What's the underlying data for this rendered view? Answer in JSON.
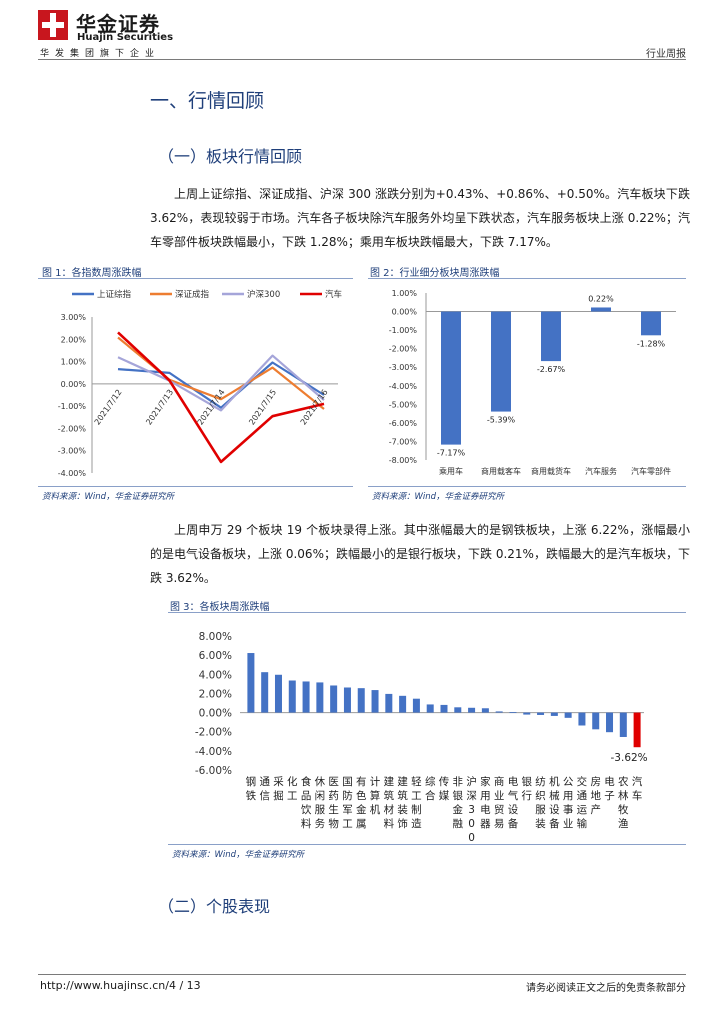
{
  "header": {
    "brand_cn": "华金证券",
    "brand_en": "Huajin Securities",
    "slogan": "华发集团旗下企业",
    "report_type": "行业周报"
  },
  "section1": {
    "title": "一、行情回顾",
    "sub1": "（一）板块行情回顾",
    "para1": "上周上证综指、深证成指、沪深 300 涨跌分别为+0.43%、+0.86%、+0.50%。汽车板块下跌 3.62%，表现较弱于市场。汽车各子板块除汽车服务外均呈下跌状态，汽车服务板块上涨 0.22%；汽车零部件板块跌幅最小，下跌 1.28%；乘用车板块跌幅最大，下跌 7.17%。",
    "para2": "上周申万 29 个板块 19 个板块录得上涨。其中涨幅最大的是钢铁板块，上涨 6.22%，涨幅最小的是电气设备板块，上涨 0.06%；跌幅最小的是银行板块，下跌 0.21%，跌幅最大的是汽车板块，下跌 3.62%。",
    "sub2": "（二）个股表现"
  },
  "fig1": {
    "caption": "图 1：各指数周涨跌幅",
    "source": "资料来源：Wind，华金证券研究所"
  },
  "fig2": {
    "caption": "图 2：行业细分板块周涨跌幅",
    "source": "资料来源：Wind，华金证券研究所"
  },
  "fig3": {
    "caption": "图 3：各板块周涨跌幅",
    "source": "资料来源：Wind，华金证券研究所"
  },
  "footer": {
    "url_page": "http://www.huajinsc.cn/4 / 13",
    "disclaimer": "请务必阅读正文之后的免责条款部分"
  },
  "chart_data": [
    {
      "type": "line",
      "categories": [
        "2021/7/12",
        "2021/7/13",
        "2021/7/14",
        "2021/7/15",
        "2021/7/16"
      ],
      "series": [
        {
          "name": "上证综指",
          "color": "#4472c4",
          "values": [
            0.66,
            0.49,
            -1.07,
            0.96,
            -0.5
          ]
        },
        {
          "name": "深证成指",
          "color": "#ed7d31",
          "values": [
            2.08,
            0.18,
            -0.69,
            0.73,
            -1.13
          ]
        },
        {
          "name": "沪深300",
          "color": "#a5a5d9",
          "values": [
            1.19,
            0.14,
            -1.19,
            1.27,
            -0.73
          ]
        },
        {
          "name": "汽车",
          "color": "#e00000",
          "values": [
            2.31,
            0.15,
            -3.5,
            -1.45,
            -0.9
          ]
        }
      ],
      "ylim": [
        -4,
        3
      ],
      "yticks": [
        "3.00%",
        "2.00%",
        "1.00%",
        "0.00%",
        "-1.00%",
        "-2.00%",
        "-3.00%",
        "-4.00%"
      ],
      "legend": "top"
    },
    {
      "type": "bar",
      "categories": [
        "乘用车",
        "商用载客车",
        "商用载货车",
        "汽车服务",
        "汽车零部件"
      ],
      "values": [
        -7.17,
        -5.39,
        -2.67,
        0.22,
        -1.28
      ],
      "labels": [
        "-7.17%",
        "-5.39%",
        "-2.67%",
        "0.22%",
        "-1.28%"
      ],
      "ylim": [
        -8,
        1
      ],
      "yticks": [
        "1.00%",
        "0.00%",
        "-1.00%",
        "-2.00%",
        "-3.00%",
        "-4.00%",
        "-5.00%",
        "-6.00%",
        "-7.00%",
        "-8.00%"
      ],
      "color": "#4472c4"
    },
    {
      "type": "bar",
      "categories": [
        "钢铁",
        "通信",
        "采掘",
        "化工",
        "食品饮料",
        "休闲服务",
        "医药生物",
        "国防军工",
        "有色金属",
        "计算机",
        "建筑材料",
        "建筑装饰",
        "轻工制造",
        "综合",
        "传媒",
        "非银金融",
        "沪深300",
        "家用电器",
        "商业贸易",
        "电气设备",
        "银行",
        "纺织服装",
        "机械设备",
        "公用事业",
        "交通运输",
        "房地产",
        "电子",
        "农林牧渔",
        "汽车"
      ],
      "values": [
        6.22,
        4.22,
        3.95,
        3.35,
        3.25,
        3.15,
        2.83,
        2.62,
        2.55,
        2.35,
        1.95,
        1.75,
        1.45,
        0.85,
        0.8,
        0.55,
        0.5,
        0.45,
        0.12,
        0.06,
        -0.21,
        -0.25,
        -0.35,
        -0.55,
        -1.35,
        -1.75,
        -2.05,
        -2.55,
        -3.62
      ],
      "labels_shown": {
        "28": "-3.62%"
      },
      "ylim": [
        -6,
        8
      ],
      "yticks": [
        "8.00%",
        "6.00%",
        "4.00%",
        "2.00%",
        "0.00%",
        "-2.00%",
        "-4.00%",
        "-6.00%"
      ],
      "color": "#4472c4",
      "highlight_color": "#e00000"
    }
  ]
}
